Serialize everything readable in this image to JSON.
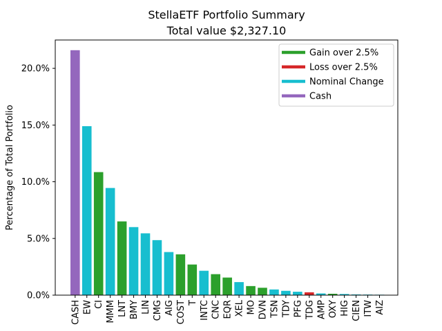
{
  "chart_data": {
    "type": "bar",
    "title": "StellaETF Portfolio Summary",
    "subtitle": "Total value $2,327.10",
    "ylabel": "Percentage of Total Portfolio",
    "xlabel": "",
    "ylim": [
      0,
      22.5
    ],
    "yticks": [
      0,
      5,
      10,
      15,
      20
    ],
    "ytick_labels": [
      "0.0%",
      "5.0%",
      "10.0%",
      "15.0%",
      "20.0%"
    ],
    "legend_position": "top-right",
    "colors": {
      "gain": "#2ca02c",
      "loss": "#d62728",
      "nominal": "#17becf",
      "cash": "#9467bd"
    },
    "legend": [
      {
        "key": "gain",
        "label": "Gain over 2.5%"
      },
      {
        "key": "loss",
        "label": "Loss over 2.5%"
      },
      {
        "key": "nominal",
        "label": "Nominal Change"
      },
      {
        "key": "cash",
        "label": "Cash"
      }
    ],
    "categories": [
      "CASH",
      "EW",
      "CI",
      "MMM",
      "LNT",
      "BMY",
      "LIN",
      "CMG",
      "AIG",
      "COST",
      "T",
      "INTC",
      "CNC",
      "EQR",
      "XEL",
      "MO",
      "DVN",
      "TSN",
      "TDY",
      "PFG",
      "TDG",
      "AMP",
      "OXY",
      "HIG",
      "CIEN",
      "ITW",
      "AIZ"
    ],
    "values": [
      21.6,
      14.9,
      10.85,
      9.45,
      6.5,
      6.0,
      5.45,
      4.85,
      3.8,
      3.6,
      2.7,
      2.15,
      1.85,
      1.55,
      1.15,
      0.8,
      0.65,
      0.5,
      0.38,
      0.3,
      0.25,
      0.15,
      0.12,
      0.1,
      0.06,
      0.05,
      0.04
    ],
    "bar_group": [
      "cash",
      "nominal",
      "gain",
      "nominal",
      "gain",
      "nominal",
      "nominal",
      "nominal",
      "nominal",
      "gain",
      "gain",
      "nominal",
      "gain",
      "gain",
      "nominal",
      "gain",
      "gain",
      "nominal",
      "nominal",
      "nominal",
      "loss",
      "nominal",
      "gain",
      "nominal",
      "nominal",
      "nominal",
      "nominal"
    ]
  }
}
